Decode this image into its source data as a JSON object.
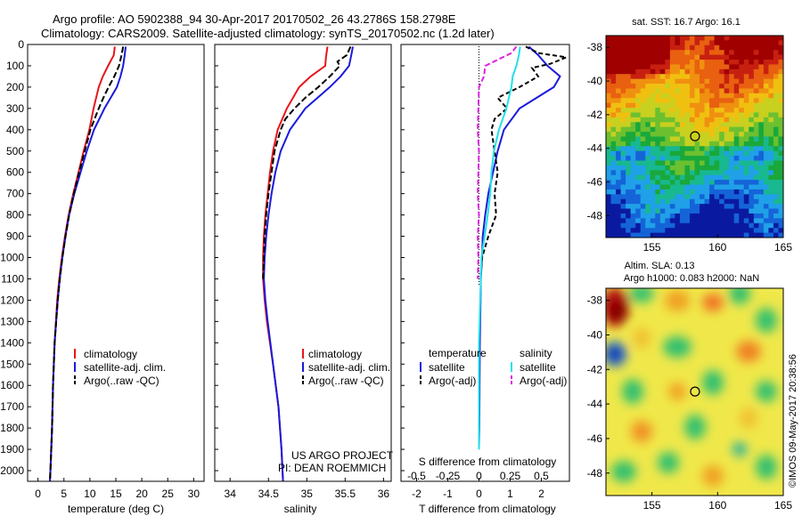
{
  "header": {
    "line1": "Argo profile: AO 5902388_94 30-Apr-2017 20170502_26 43.2786S 158.2798E",
    "line2": "Climatology: CARS2009. Satellite-adjusted climatology: synTS_20170502.nc (1.2d later)"
  },
  "colors": {
    "climatology": "#e8151b",
    "satellite": "#1a1adc",
    "argo": "#000000",
    "satellite_s": "#22e0e8",
    "argo_s": "#e020e0"
  },
  "project_text": [
    "US ARGO PROJECT",
    "PI: DEAN ROEMMICH"
  ],
  "watermark": "©IMOS 09-May-2017 20:38:56",
  "chart_data": [
    {
      "id": "temperature",
      "type": "line",
      "xlabel": "temperature (deg C)",
      "xlim": [
        -2,
        32
      ],
      "ylim": [
        2050,
        0
      ],
      "xticks": [
        0,
        5,
        10,
        15,
        20,
        25,
        30
      ],
      "yticks": [
        0,
        100,
        200,
        300,
        400,
        500,
        600,
        700,
        800,
        900,
        1000,
        1100,
        1200,
        1300,
        1400,
        1500,
        1600,
        1700,
        1800,
        1900,
        2000
      ],
      "legend": [
        "climatology",
        "satellite-adj. clim.",
        "Argo(..raw -QC)"
      ],
      "series": [
        {
          "name": "climatology",
          "color": "#e8151b",
          "dash": "",
          "depth": [
            10,
            50,
            100,
            150,
            200,
            300,
            400,
            500,
            600,
            700,
            800,
            900,
            1000,
            1100,
            1200,
            1400,
            1600,
            1800,
            2000,
            2050
          ],
          "value": [
            14.8,
            14.6,
            13.5,
            12.5,
            11.7,
            10.7,
            9.9,
            8.8,
            7.8,
            6.8,
            5.9,
            5.2,
            4.6,
            4.1,
            3.7,
            3.2,
            2.9,
            2.7,
            2.4,
            2.3
          ]
        },
        {
          "name": "satellite-adj. clim.",
          "color": "#1a1adc",
          "dash": "",
          "depth": [
            10,
            50,
            100,
            150,
            200,
            250,
            300,
            400,
            500,
            600,
            700,
            800,
            900,
            1000,
            1100,
            1200,
            1400,
            1600,
            1800,
            2000,
            2050
          ],
          "value": [
            16.9,
            16.7,
            16.4,
            15.9,
            15.2,
            14.0,
            12.8,
            10.8,
            9.4,
            8.2,
            7.0,
            6.0,
            5.3,
            4.7,
            4.2,
            3.8,
            3.2,
            2.9,
            2.7,
            2.4,
            2.3
          ]
        },
        {
          "name": "Argo(..raw -QC)",
          "color": "#000000",
          "dash": "7,3",
          "depth": [
            10,
            50,
            100,
            150,
            200,
            250,
            300,
            350,
            400,
            500,
            600,
            700,
            800,
            900,
            1000,
            1100,
            1200,
            1400,
            1600,
            1800,
            2000,
            2050
          ],
          "value": [
            16.4,
            16.1,
            15.6,
            14.7,
            13.6,
            12.6,
            11.7,
            10.9,
            10.1,
            9.0,
            7.9,
            6.9,
            6.0,
            5.3,
            4.7,
            4.2,
            3.8,
            3.2,
            2.9,
            2.7,
            2.4,
            2.3
          ]
        }
      ]
    },
    {
      "id": "salinity",
      "type": "line",
      "xlabel": "salinity",
      "xlim": [
        33.8,
        36.1
      ],
      "ylim": [
        2050,
        0
      ],
      "xticks": [
        34,
        34.5,
        35,
        35.5,
        36
      ],
      "legend": [
        "climatology",
        "satellite-adj. clim.",
        "Argo(..raw -QC)"
      ],
      "series": [
        {
          "name": "climatology",
          "color": "#e8151b",
          "dash": "",
          "depth": [
            10,
            60,
            100,
            150,
            200,
            300,
            400,
            500,
            600,
            700,
            800,
            900,
            1000,
            1100,
            1200,
            1300,
            1500,
            1700,
            1900,
            2050
          ],
          "value": [
            35.27,
            35.25,
            35.24,
            35.05,
            34.9,
            34.74,
            34.62,
            34.56,
            34.52,
            34.49,
            34.46,
            34.44,
            34.43,
            34.43,
            34.45,
            34.48,
            34.56,
            34.63,
            34.67,
            34.69
          ]
        },
        {
          "name": "satellite-adj. clim.",
          "color": "#1a1adc",
          "dash": "",
          "depth": [
            10,
            50,
            100,
            150,
            200,
            250,
            300,
            400,
            500,
            600,
            700,
            800,
            900,
            1000,
            1100,
            1200,
            1300,
            1500,
            1700,
            1900,
            2050
          ],
          "value": [
            35.6,
            35.58,
            35.55,
            35.44,
            35.3,
            35.14,
            34.98,
            34.78,
            34.66,
            34.59,
            34.54,
            34.5,
            34.47,
            34.45,
            34.44,
            34.46,
            34.49,
            34.56,
            34.63,
            34.67,
            34.69
          ]
        },
        {
          "name": "Argo(..raw -QC)",
          "color": "#000000",
          "dash": "7,3",
          "depth": [
            10,
            50,
            80,
            100,
            150,
            200,
            250,
            300,
            350,
            400,
            500,
            600,
            700,
            800,
            900,
            1000,
            1100
          ],
          "value": [
            35.57,
            35.52,
            35.4,
            35.43,
            35.3,
            35.15,
            34.98,
            34.84,
            34.72,
            34.66,
            34.58,
            34.54,
            34.5,
            34.47,
            34.45,
            34.44,
            34.43
          ]
        }
      ]
    },
    {
      "id": "differences",
      "type": "line",
      "xlabel": "T difference from climatology",
      "xlabel_top": "S difference from climatology",
      "xlim": [
        -2.5,
        2.9
      ],
      "ylim": [
        2050,
        0
      ],
      "xticks": [
        -2,
        -1,
        0,
        1,
        2
      ],
      "xticks_s": [
        -0.5,
        -0.25,
        0,
        0.25,
        0.5
      ],
      "xticks_s_labels": [
        "-0.5",
        "-0.25",
        "0",
        "0.25",
        "0.5"
      ],
      "legend_titles": [
        "temperature",
        "salinity"
      ],
      "legend": [
        "satellite",
        "Argo(-adj)",
        "satellite",
        "Argo(-adj)"
      ],
      "series": [
        {
          "name": "T satellite",
          "color": "#1a1adc",
          "dash": "",
          "depth": [
            10,
            50,
            100,
            150,
            200,
            300,
            400,
            500,
            600,
            700,
            800,
            900,
            1000,
            1100,
            1200,
            1400,
            1600,
            1800,
            1900
          ],
          "value": [
            1.6,
            1.9,
            2.2,
            2.6,
            2.4,
            1.3,
            0.8,
            0.6,
            0.45,
            0.3,
            0.2,
            0.12,
            0.1,
            0.06,
            0.05,
            0.03,
            0.02,
            0.01,
            0.0
          ]
        },
        {
          "name": "T Argo(-adj)",
          "color": "#000000",
          "dash": "5,3",
          "depth": [
            10,
            40,
            60,
            90,
            110,
            150,
            200,
            250,
            300,
            350,
            400,
            500,
            600,
            700,
            800,
            900,
            1000,
            1100
          ],
          "value": [
            1.5,
            1.9,
            2.8,
            2.3,
            1.7,
            1.9,
            1.3,
            0.6,
            0.9,
            0.5,
            0.4,
            0.5,
            0.6,
            0.5,
            0.55,
            0.3,
            0.1,
            0.05
          ]
        },
        {
          "name": "S satellite",
          "color": "#22e0e8",
          "dash": "",
          "depth": [
            10,
            50,
            100,
            150,
            200,
            300,
            400,
            500,
            600,
            700,
            800,
            1000,
            1200,
            1400,
            1600,
            1800,
            1900
          ],
          "value": [
            0.33,
            0.32,
            0.3,
            0.27,
            0.26,
            0.22,
            0.16,
            0.12,
            0.1,
            0.09,
            0.07,
            0.02,
            0.01,
            0.0,
            0.0,
            0.0,
            0.0
          ]
        },
        {
          "name": "S Argo(-adj)",
          "color": "#e020e0",
          "dash": "6,3",
          "depth": [
            10,
            40,
            80,
            100,
            150,
            200,
            300,
            400,
            500,
            600,
            700,
            800,
            900,
            1000,
            1100
          ],
          "value": [
            0.3,
            0.26,
            0.12,
            0.05,
            0.04,
            0.0,
            -0.005,
            -0.01,
            0.0,
            -0.005,
            -0.01,
            0.0,
            -0.01,
            -0.005,
            -0.01
          ]
        }
      ]
    },
    {
      "id": "sst_map",
      "type": "heatmap",
      "title": "sat. SST: 16.7 Argo: 16.1",
      "xlim": [
        151.5,
        165
      ],
      "ylim": [
        -49.3,
        -37.3
      ],
      "xticks": [
        155,
        160,
        165
      ],
      "yticks": [
        -38,
        -40,
        -42,
        -44,
        -46,
        -48
      ],
      "argo_position": {
        "lon": 158.28,
        "lat": -43.28
      }
    },
    {
      "id": "sla_map",
      "type": "heatmap",
      "title": "Altim. SLA: 0.13",
      "subtitle": "Argo h1000: 0.083 h2000: NaN",
      "xlim": [
        151.5,
        165
      ],
      "ylim": [
        -49.3,
        -37.3
      ],
      "xticks": [
        155,
        160,
        165
      ],
      "yticks": [
        -38,
        -40,
        -42,
        -44,
        -46,
        -48
      ],
      "argo_position": {
        "lon": 158.28,
        "lat": -43.28
      }
    }
  ]
}
